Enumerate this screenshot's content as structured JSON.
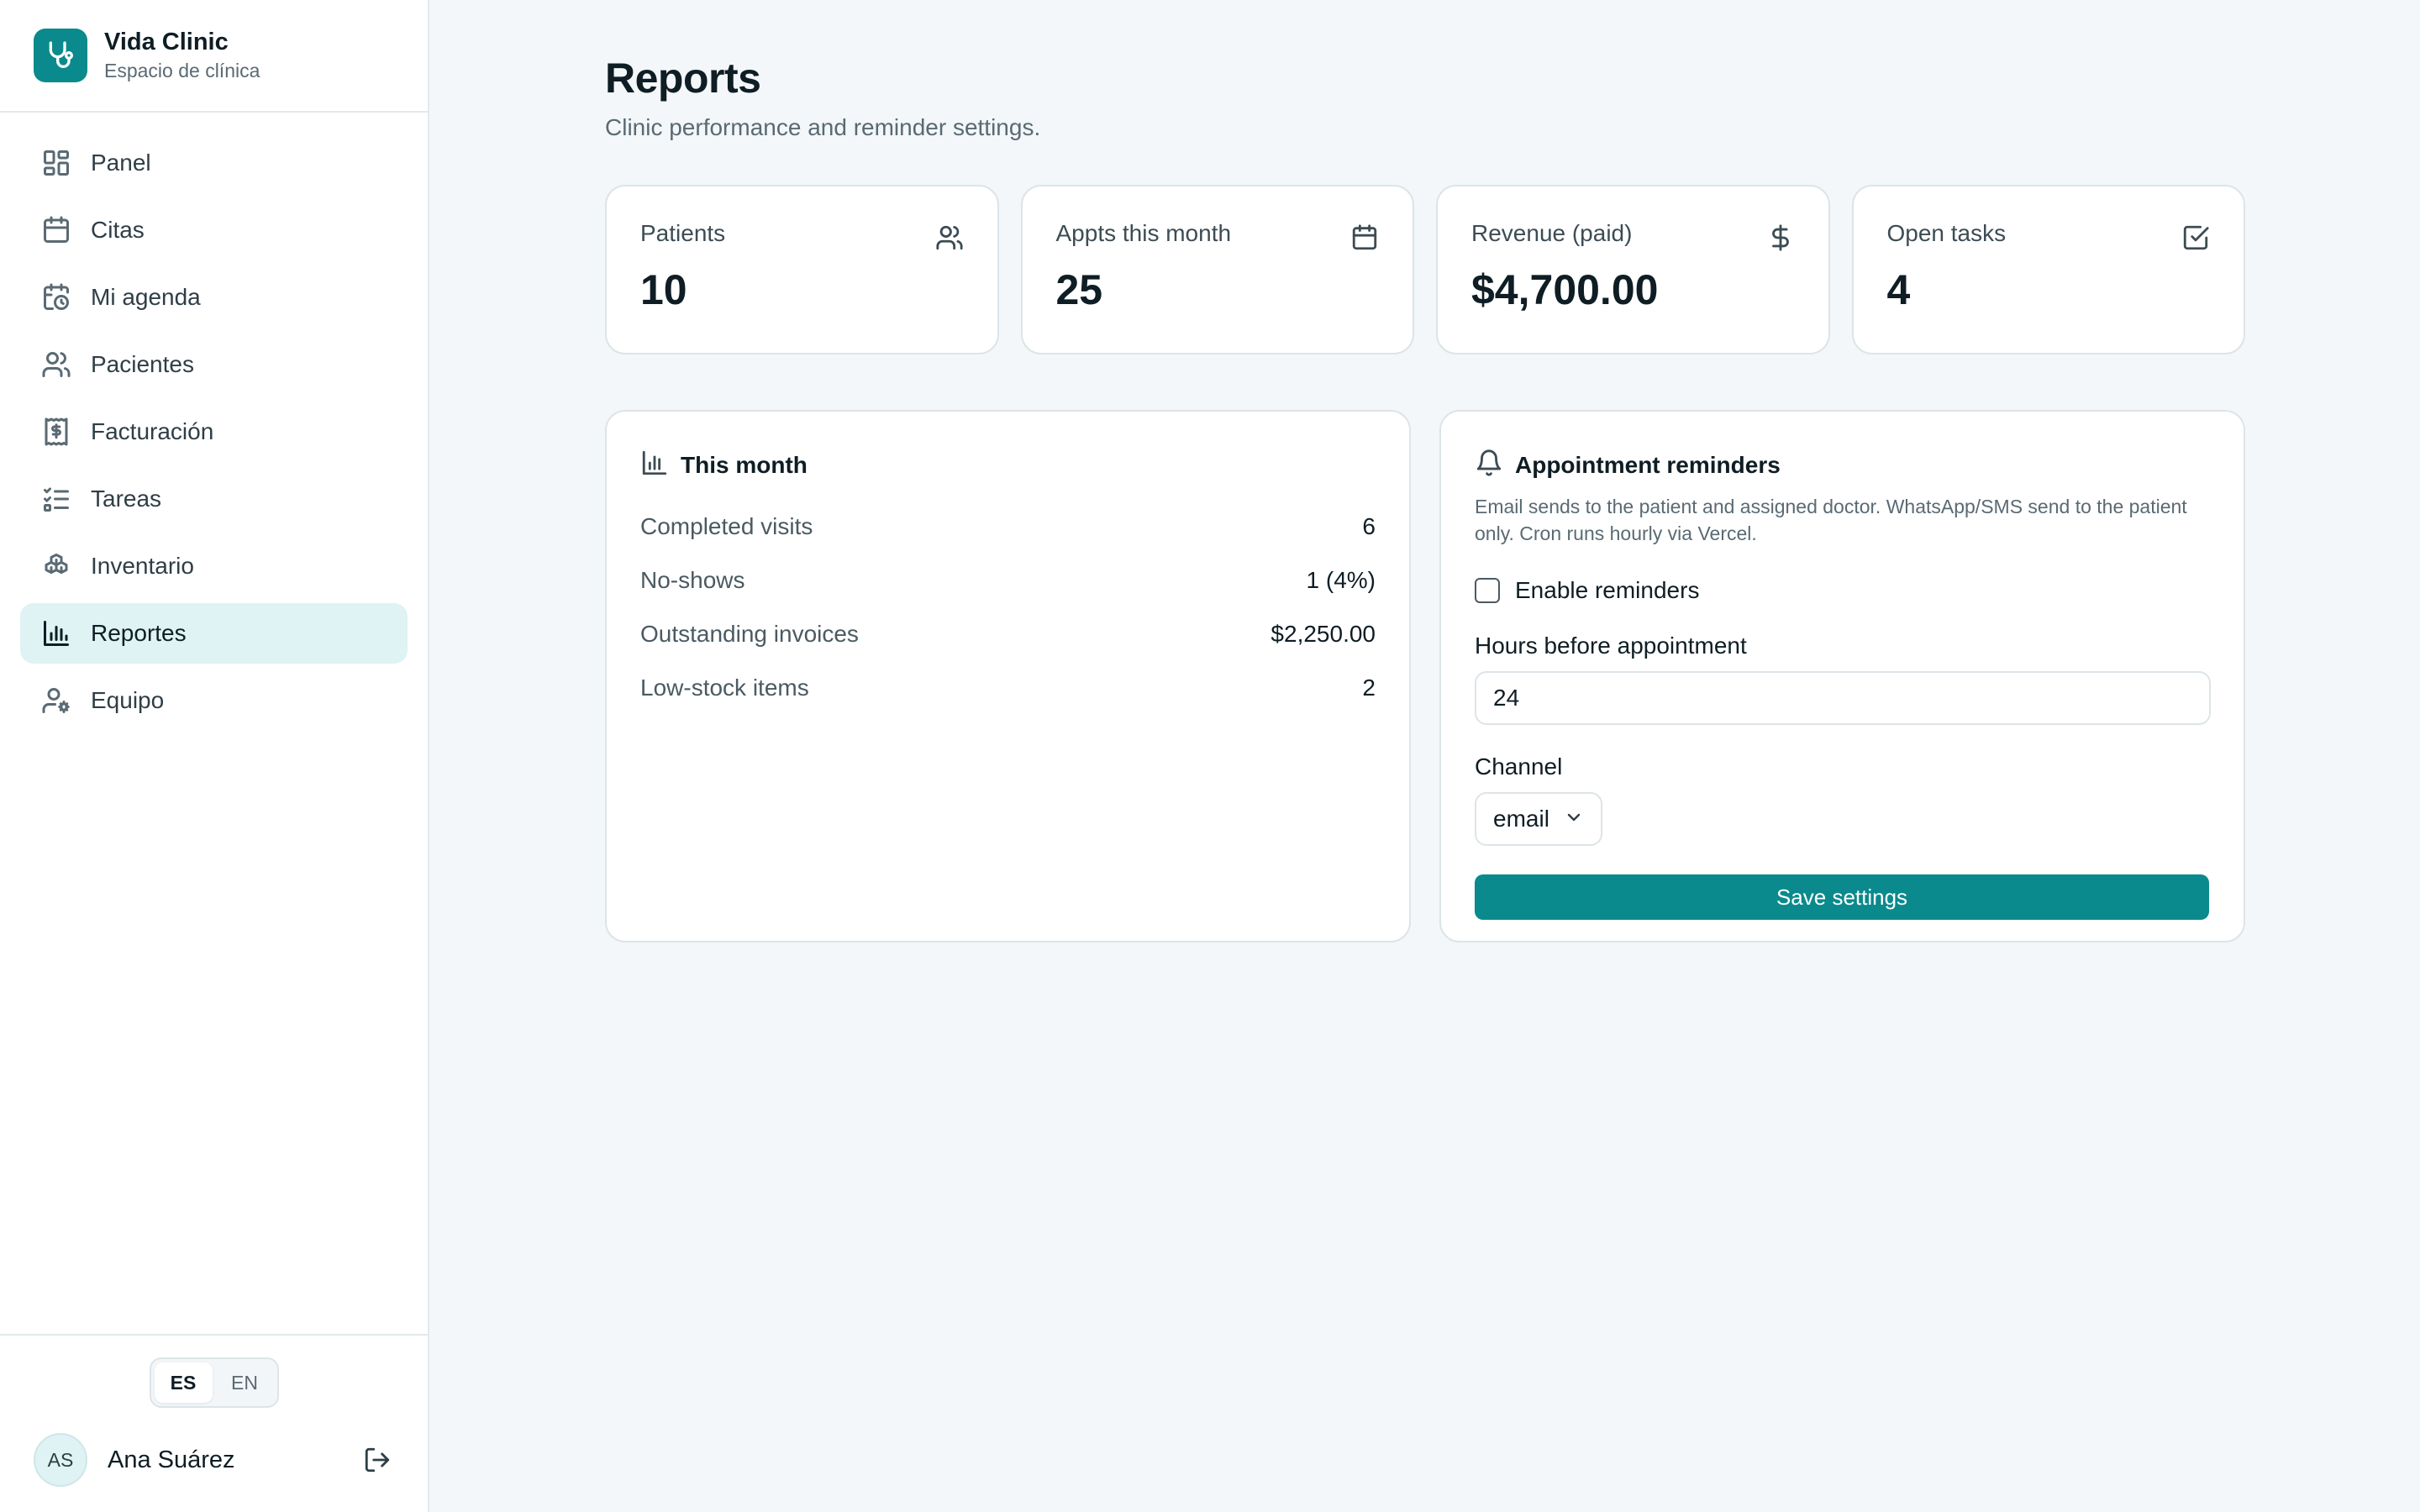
{
  "brand": {
    "name": "Vida Clinic",
    "subtitle": "Espacio de clínica",
    "logo_icon": "stethoscope-icon",
    "accent": "#0a8a8c"
  },
  "sidebar": {
    "items": [
      {
        "label": "Panel",
        "icon": "dashboard-icon",
        "active": false
      },
      {
        "label": "Citas",
        "icon": "calendar-icon",
        "active": false
      },
      {
        "label": "Mi agenda",
        "icon": "calendar-clock-icon",
        "active": false
      },
      {
        "label": "Pacientes",
        "icon": "users-icon",
        "active": false
      },
      {
        "label": "Facturación",
        "icon": "receipt-icon",
        "active": false
      },
      {
        "label": "Tareas",
        "icon": "checklist-icon",
        "active": false
      },
      {
        "label": "Inventario",
        "icon": "boxes-icon",
        "active": false
      },
      {
        "label": "Reportes",
        "icon": "bar-chart-icon",
        "active": true
      },
      {
        "label": "Equipo",
        "icon": "user-cog-icon",
        "active": false
      }
    ]
  },
  "language": {
    "options": [
      "ES",
      "EN"
    ],
    "selected": "ES"
  },
  "user": {
    "initials": "AS",
    "name": "Ana Suárez",
    "logout_icon": "logout-icon"
  },
  "page": {
    "title": "Reports",
    "subtitle": "Clinic performance and reminder settings."
  },
  "stats": [
    {
      "label": "Patients",
      "value": "10",
      "icon": "users-icon"
    },
    {
      "label": "Appts this month",
      "value": "25",
      "icon": "calendar-icon"
    },
    {
      "label": "Revenue (paid)",
      "value": "$4,700.00",
      "icon": "dollar-icon"
    },
    {
      "label": "Open tasks",
      "value": "4",
      "icon": "check-square-icon"
    }
  ],
  "this_month": {
    "title": "This month",
    "icon": "bar-chart-icon",
    "rows": [
      {
        "label": "Completed visits",
        "value": "6"
      },
      {
        "label": "No-shows",
        "value": "1 (4%)"
      },
      {
        "label": "Outstanding invoices",
        "value": "$2,250.00"
      },
      {
        "label": "Low-stock items",
        "value": "2"
      }
    ]
  },
  "reminders": {
    "title": "Appointment reminders",
    "icon": "bell-icon",
    "description": "Email sends to the patient and assigned doctor. WhatsApp/SMS send to the patient only. Cron runs hourly via Vercel.",
    "enable_label": "Enable reminders",
    "enabled": false,
    "hours_label": "Hours before appointment",
    "hours_value": "24",
    "channel_label": "Channel",
    "channel_value": "email",
    "save_label": "Save settings"
  }
}
